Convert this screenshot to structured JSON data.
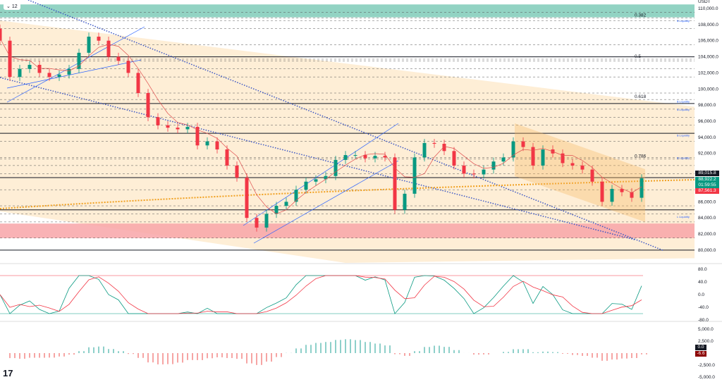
{
  "header": {
    "interval_badge": "12",
    "currency": "USDT"
  },
  "logo": "17",
  "chart_data": {
    "type": "candlestick",
    "ylim": [
      79000,
      111000
    ],
    "price_ticks": [
      "110,000.0",
      "108,000.0",
      "106,000.0",
      "104,000.0",
      "102,000.0",
      "100,000.0",
      "98,000.0",
      "96,000.0",
      "94,000.0",
      "92,000.0",
      "86,000.0",
      "84,000.0",
      "82,000.0",
      "80,000.0"
    ],
    "price_tick_values": [
      110000,
      108000,
      106000,
      104000,
      102000,
      100000,
      98000,
      96000,
      94000,
      92000,
      86000,
      84000,
      82000,
      80000
    ],
    "closes": [
      106000,
      101500,
      102500,
      103000,
      102000,
      101500,
      101800,
      102500,
      104500,
      106500,
      106000,
      104000,
      103500,
      102000,
      99500,
      96500,
      95500,
      95200,
      95000,
      95300,
      93000,
      93500,
      92500,
      90500,
      89000,
      84000,
      82800,
      84500,
      85500,
      86000,
      87500,
      88500,
      88800,
      89200,
      91200,
      91800,
      91800,
      91400,
      91700,
      91500,
      85000,
      87000,
      91500,
      93300,
      93200,
      92300,
      90500,
      89500,
      89400,
      90000,
      91000,
      91500,
      93500,
      92800,
      90500,
      92500,
      92000,
      90800,
      90500,
      90000,
      88500,
      86000,
      87600,
      87200,
      86500,
      88922
    ],
    "fib_levels": [
      {
        "label": "0.382",
        "price": 108800
      },
      {
        "label": "0.5",
        "price": 103700
      },
      {
        "label": "0.618",
        "price": 98700
      },
      {
        "label": "0.786",
        "price": 91300
      }
    ],
    "solid_levels": [
      104000,
      98200,
      94500,
      89000,
      85000,
      80000
    ],
    "liquidity_labels": [
      {
        "label": "$ Liquidity",
        "price": 108500
      },
      {
        "label": "$ Liquidity",
        "price": 98500
      },
      {
        "label": "$ Liquidity",
        "price": 97500
      },
      {
        "label": "$ Liquidity",
        "price": 94300
      },
      {
        "label": "$ Liquidity",
        "price": 91500
      },
      {
        "label": "L Liquidity",
        "price": 84200
      }
    ],
    "zones": [
      {
        "name": "resistance",
        "from": 108900,
        "to": 110500,
        "color": "#7fcbb8"
      },
      {
        "name": "support",
        "from": 81500,
        "to": 83300,
        "color": "#f8a5a8"
      }
    ],
    "price_tags": [
      {
        "value": "89,015.8",
        "color": "#131722"
      },
      {
        "value": "88,922.2",
        "color": "#089981"
      },
      {
        "value": "01:59:55",
        "color": "#089981"
      },
      {
        "value": "87,561.3",
        "color": "#f23645"
      }
    ],
    "oscillator": {
      "ticks": [
        "80.0",
        "40.0",
        "0.0",
        "-40.0",
        "-80.0"
      ],
      "tick_values": [
        80,
        40,
        0,
        -40,
        -80
      ]
    },
    "histogram": {
      "ticks": [
        "5,000.0",
        "2,500.0",
        "-2,500.0",
        "-5,000.0"
      ],
      "tick_values": [
        5000,
        2500,
        -2500,
        -5000
      ],
      "tags": [
        {
          "value": "0.0",
          "color": "#131722"
        },
        {
          "value": "-6.6",
          "color": "#8b0000"
        }
      ]
    },
    "colors": {
      "up": "#089981",
      "down": "#f23645",
      "channel": "#fde7c4",
      "trend": "#2962ff"
    }
  }
}
